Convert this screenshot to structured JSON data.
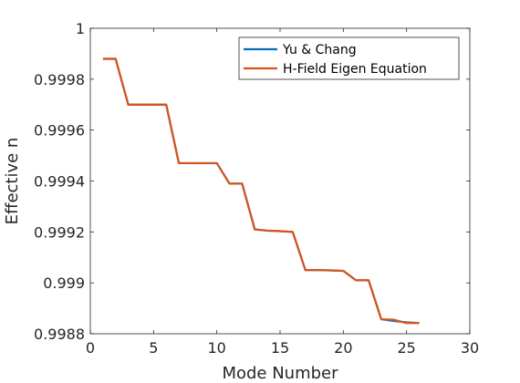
{
  "chart_data": {
    "type": "line",
    "title": "",
    "xlabel": "Mode Number",
    "ylabel": "Effective n",
    "xlim": [
      0,
      30
    ],
    "ylim": [
      0.9988,
      1.0
    ],
    "x_ticks": [
      0,
      5,
      10,
      15,
      20,
      25,
      30
    ],
    "y_ticks": [
      0.9988,
      0.999,
      0.9992,
      0.9994,
      0.9996,
      0.9998,
      1.0
    ],
    "y_tick_labels": [
      "0.9988",
      "0.999",
      "0.9992",
      "0.9994",
      "0.9996",
      "0.9998",
      "1"
    ],
    "x_tick_labels": [
      "0",
      "5",
      "10",
      "15",
      "20",
      "25",
      "30"
    ],
    "grid": false,
    "legend_position": "top-right",
    "series": [
      {
        "name": "Yu & Chang",
        "color": "#0072BD",
        "x": [
          1,
          2,
          3,
          4,
          5,
          6,
          7,
          8,
          9,
          10,
          11,
          12,
          13,
          14,
          15,
          16,
          17,
          18,
          19,
          20,
          21,
          22,
          23,
          24,
          25,
          26
        ],
        "y": [
          0.99988,
          0.99988,
          0.9997,
          0.9997,
          0.9997,
          0.9997,
          0.99947,
          0.99947,
          0.99947,
          0.99947,
          0.99939,
          0.99939,
          0.99921,
          0.999205,
          0.999203,
          0.9992,
          0.99905,
          0.99905,
          0.999049,
          0.999047,
          0.99901,
          0.99901,
          0.998857,
          0.99885,
          0.998845,
          0.998842
        ]
      },
      {
        "name": "H-Field Eigen Equation",
        "color": "#D95319",
        "x": [
          1,
          2,
          3,
          4,
          5,
          6,
          7,
          8,
          9,
          10,
          11,
          12,
          13,
          14,
          15,
          16,
          17,
          18,
          19,
          20,
          21,
          22,
          23,
          24,
          25,
          26
        ],
        "y": [
          0.99988,
          0.99988,
          0.9997,
          0.9997,
          0.9997,
          0.9997,
          0.99947,
          0.99947,
          0.99947,
          0.99947,
          0.99939,
          0.99939,
          0.99921,
          0.999205,
          0.999203,
          0.9992,
          0.99905,
          0.99905,
          0.999049,
          0.999047,
          0.99901,
          0.99901,
          0.998857,
          0.998855,
          0.998842,
          0.998842
        ]
      }
    ]
  }
}
